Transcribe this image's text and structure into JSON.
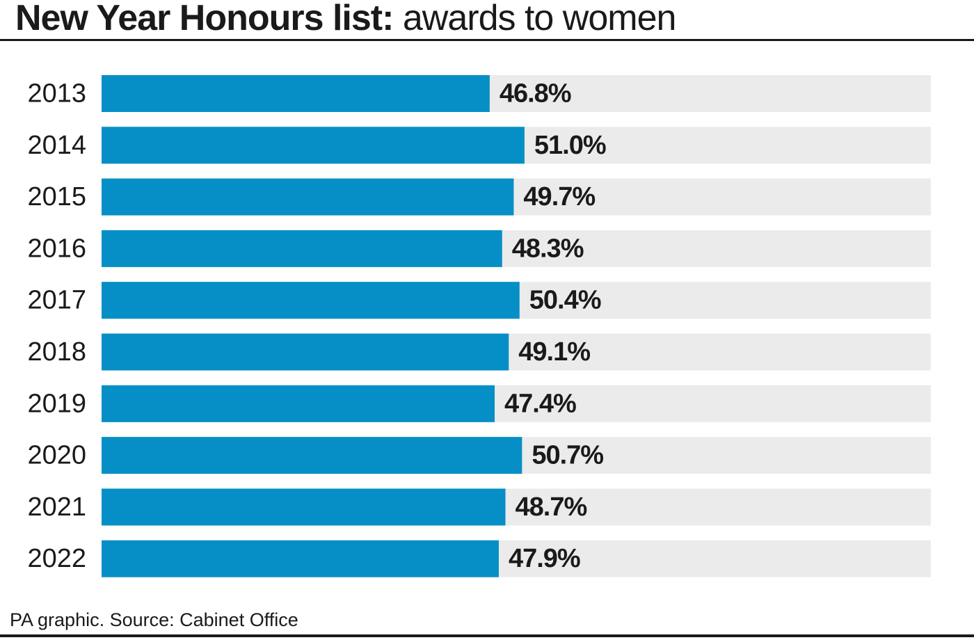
{
  "title": {
    "bold": "New Year Honours list:",
    "light": " awards to women"
  },
  "source": "PA graphic. Source: Cabinet Office",
  "colors": {
    "bar": "#068fc6",
    "track": "#ebebeb",
    "text": "#1a1a1a",
    "rule": "#1a1a1a"
  },
  "chart_data": {
    "type": "bar",
    "orientation": "horizontal",
    "title": "New Year Honours list: awards to women",
    "xlabel": "",
    "ylabel": "",
    "xlim": [
      0,
      100
    ],
    "unit": "%",
    "grid": false,
    "categories": [
      "2013",
      "2014",
      "2015",
      "2016",
      "2017",
      "2018",
      "2019",
      "2020",
      "2021",
      "2022"
    ],
    "values": [
      46.8,
      51.0,
      49.7,
      48.3,
      50.4,
      49.1,
      47.4,
      50.7,
      48.7,
      47.9
    ],
    "value_labels": [
      "46.8%",
      "51.0%",
      "49.7%",
      "48.3%",
      "50.4%",
      "49.1%",
      "47.4%",
      "50.7%",
      "48.7%",
      "47.9%"
    ]
  }
}
